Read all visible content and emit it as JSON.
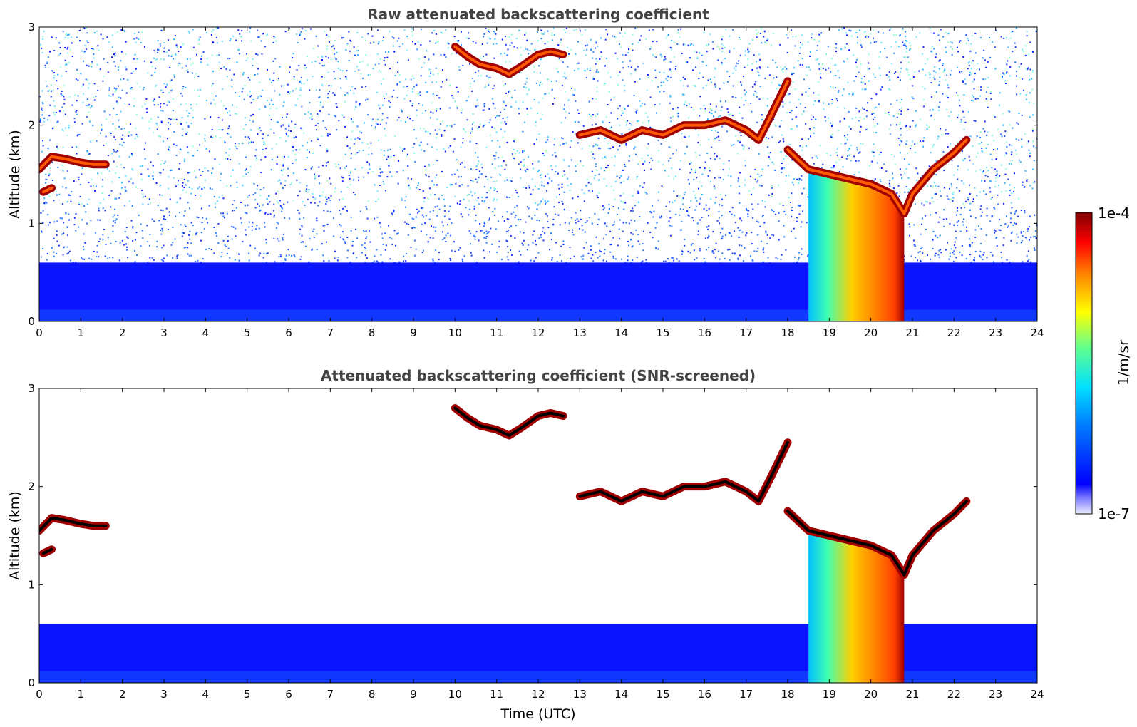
{
  "chart_data": [
    {
      "type": "heatmap",
      "title": "Raw attenuated backscattering coefficient",
      "xlabel": "",
      "ylabel": "Altitude (km)",
      "xlim": [
        0,
        24
      ],
      "ylim": [
        0,
        3
      ],
      "x_ticks": [
        "0",
        "1",
        "2",
        "3",
        "4",
        "5",
        "6",
        "7",
        "8",
        "9",
        "10",
        "11",
        "12",
        "13",
        "14",
        "15",
        "16",
        "17",
        "18",
        "19",
        "20",
        "21",
        "22",
        "23",
        "24"
      ],
      "y_ticks": [
        "0",
        "1",
        "2",
        "3"
      ],
      "noise_background": true,
      "boundary_layer_top_km": 0.6,
      "cloud_layers": [
        {
          "x": [
            0.0,
            0.3,
            0.6,
            1.0,
            1.3,
            1.6
          ],
          "y": [
            1.55,
            1.68,
            1.66,
            1.62,
            1.6,
            1.6
          ]
        },
        {
          "x": [
            0.1,
            0.3
          ],
          "y": [
            1.32,
            1.36
          ]
        },
        {
          "x": [
            10.0,
            10.3,
            10.6,
            11.0,
            11.3,
            11.6,
            12.0,
            12.3,
            12.6
          ],
          "y": [
            2.8,
            2.7,
            2.62,
            2.58,
            2.52,
            2.6,
            2.72,
            2.75,
            2.72
          ]
        },
        {
          "x": [
            13.0,
            13.5,
            14.0,
            14.5,
            15.0,
            15.5,
            16.0,
            16.5,
            17.0,
            17.3,
            17.6,
            18.0
          ],
          "y": [
            1.9,
            1.95,
            1.85,
            1.95,
            1.9,
            2.0,
            2.0,
            2.05,
            1.95,
            1.85,
            2.1,
            2.45
          ]
        },
        {
          "x": [
            18.0,
            18.5,
            19.0,
            19.5,
            20.0,
            20.5,
            20.8,
            21.0,
            21.5,
            22.0,
            22.3
          ],
          "y": [
            1.75,
            1.55,
            1.5,
            1.45,
            1.4,
            1.3,
            1.1,
            1.3,
            1.55,
            1.72,
            1.85
          ]
        }
      ],
      "precipitation": {
        "x_start": 18.5,
        "x_end": 20.8
      }
    },
    {
      "type": "heatmap",
      "title": "Attenuated backscattering coefficient (SNR-screened)",
      "xlabel": "Time (UTC)",
      "ylabel": "Altitude (km)",
      "xlim": [
        0,
        24
      ],
      "ylim": [
        0,
        3
      ],
      "x_ticks": [
        "0",
        "1",
        "2",
        "3",
        "4",
        "5",
        "6",
        "7",
        "8",
        "9",
        "10",
        "11",
        "12",
        "13",
        "14",
        "15",
        "16",
        "17",
        "18",
        "19",
        "20",
        "21",
        "22",
        "23",
        "24"
      ],
      "y_ticks": [
        "0",
        "1",
        "2",
        "3"
      ],
      "noise_background": false,
      "boundary_layer_top_km": 0.6,
      "cloud_layers": [
        {
          "x": [
            0.0,
            0.3,
            0.6,
            1.0,
            1.3,
            1.6
          ],
          "y": [
            1.55,
            1.68,
            1.66,
            1.62,
            1.6,
            1.6
          ]
        },
        {
          "x": [
            0.1,
            0.3
          ],
          "y": [
            1.32,
            1.36
          ]
        },
        {
          "x": [
            10.0,
            10.3,
            10.6,
            11.0,
            11.3,
            11.6,
            12.0,
            12.3,
            12.6
          ],
          "y": [
            2.8,
            2.7,
            2.62,
            2.58,
            2.52,
            2.6,
            2.72,
            2.75,
            2.72
          ]
        },
        {
          "x": [
            13.0,
            13.5,
            14.0,
            14.5,
            15.0,
            15.5,
            16.0,
            16.5,
            17.0,
            17.3,
            17.6,
            18.0
          ],
          "y": [
            1.9,
            1.95,
            1.85,
            1.95,
            1.9,
            2.0,
            2.0,
            2.05,
            1.95,
            1.85,
            2.1,
            2.45
          ]
        },
        {
          "x": [
            18.0,
            18.5,
            19.0,
            19.5,
            20.0,
            20.5,
            20.8,
            21.0,
            21.5,
            22.0,
            22.3
          ],
          "y": [
            1.75,
            1.55,
            1.5,
            1.45,
            1.4,
            1.3,
            1.1,
            1.3,
            1.55,
            1.72,
            1.85
          ]
        }
      ],
      "precipitation": {
        "x_start": 18.5,
        "x_end": 20.8
      }
    }
  ],
  "colorbar": {
    "label": "1/m/sr",
    "max_label": "1e-4",
    "min_label": "1e-7",
    "colormap": "jet",
    "scale": "log"
  }
}
